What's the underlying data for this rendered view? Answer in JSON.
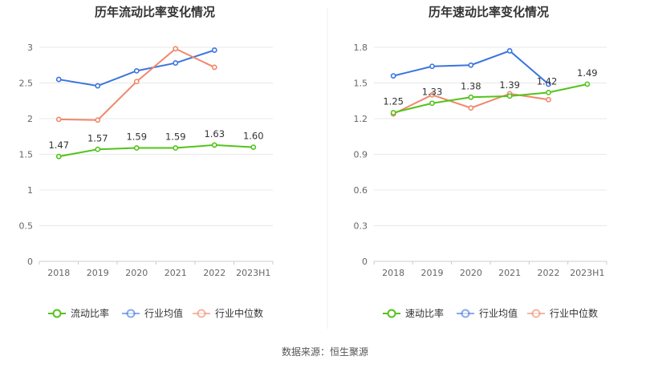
{
  "source_text": "数据来源：恒生聚源",
  "colors": {
    "company": "#52c41a",
    "industry_avg": "#3b74e0",
    "industry_median": "#f0876a"
  },
  "chart_data": [
    {
      "type": "line",
      "title": "历年流动比率变化情况",
      "categories": [
        "2018",
        "2019",
        "2020",
        "2021",
        "2022",
        "2023H1"
      ],
      "ylim": [
        0,
        3
      ],
      "yticks": [
        0,
        0.5,
        1,
        1.5,
        2,
        2.5,
        3
      ],
      "ytick_labels": [
        "0",
        "0.5",
        "1",
        "1.5",
        "2",
        "2.5",
        "3"
      ],
      "series": [
        {
          "name": "流动比率",
          "key": "company",
          "values": [
            1.47,
            1.57,
            1.59,
            1.59,
            1.63,
            1.6
          ],
          "labels": [
            "1.47",
            "1.57",
            "1.59",
            "1.59",
            "1.63",
            "1.60"
          ]
        },
        {
          "name": "行业均值",
          "key": "industry_avg",
          "values": [
            2.55,
            2.46,
            2.67,
            2.78,
            2.96,
            null
          ]
        },
        {
          "name": "行业中位数",
          "key": "industry_median",
          "values": [
            1.99,
            1.98,
            2.52,
            2.98,
            2.72,
            null
          ]
        }
      ],
      "legend": "bottom"
    },
    {
      "type": "line",
      "title": "历年速动比率变化情况",
      "categories": [
        "2018",
        "2019",
        "2020",
        "2021",
        "2022",
        "2023H1"
      ],
      "ylim": [
        0,
        1.8
      ],
      "yticks": [
        0,
        0.3,
        0.6,
        0.9,
        1.2,
        1.5,
        1.8
      ],
      "ytick_labels": [
        "0",
        "0.3",
        "0.6",
        "0.9",
        "1.2",
        "1.5",
        "1.8"
      ],
      "series": [
        {
          "name": "速动比率",
          "key": "company",
          "values": [
            1.25,
            1.33,
            1.38,
            1.39,
            1.42,
            1.49
          ],
          "labels": [
            "1.25",
            "1.33",
            "1.38",
            "1.39",
            "1.42",
            "1.49"
          ]
        },
        {
          "name": "行业均值",
          "key": "industry_avg",
          "values": [
            1.56,
            1.64,
            1.65,
            1.77,
            1.49,
            null
          ]
        },
        {
          "name": "行业中位数",
          "key": "industry_median",
          "values": [
            1.24,
            1.4,
            1.29,
            1.41,
            1.36,
            null
          ]
        }
      ],
      "legend": "bottom"
    }
  ]
}
